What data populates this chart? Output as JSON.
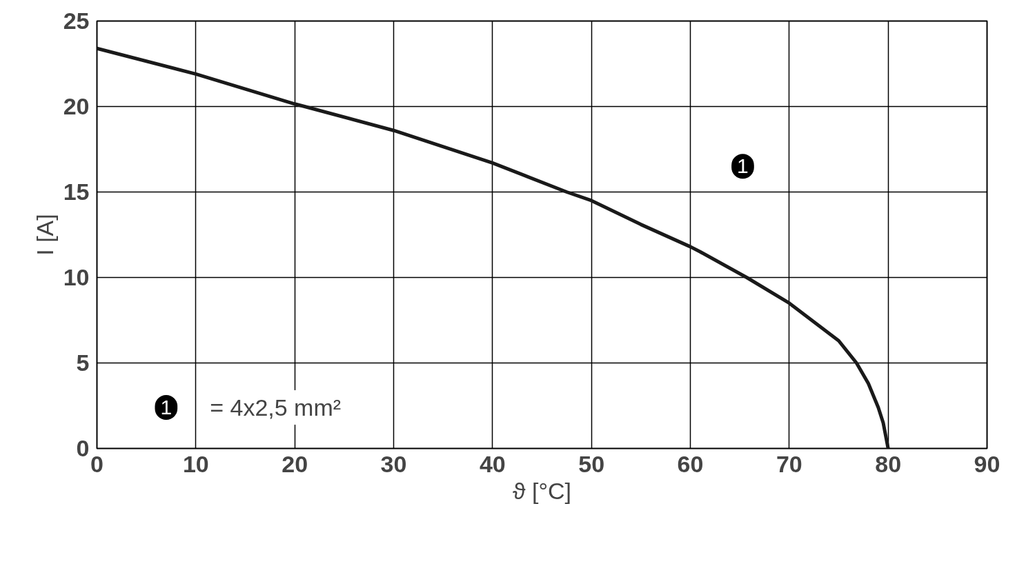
{
  "chart_data": {
    "type": "line",
    "xlabel": "ϑ [°C]",
    "ylabel": "I [A]",
    "x": [
      0,
      10,
      20,
      21,
      30,
      40,
      47.5,
      50,
      55,
      60,
      61,
      65.7,
      70,
      75,
      76.8,
      78,
      79,
      79.5,
      80
    ],
    "series": [
      {
        "name": "= 4x2,5 mm²",
        "color": "#1a1a1a",
        "values": [
          23.4,
          21.9,
          20.15,
          20,
          18.6,
          16.7,
          15,
          14.5,
          13.1,
          11.8,
          11.5,
          10,
          8.5,
          6.3,
          5,
          3.8,
          2.4,
          1.5,
          0
        ]
      }
    ],
    "annotations": [
      {
        "text": "1",
        "x": 65.3,
        "y": 16.5
      }
    ],
    "xlim": [
      0,
      90
    ],
    "xticks": [
      0,
      10,
      20,
      30,
      40,
      50,
      60,
      70,
      80,
      90
    ],
    "ylim": [
      0,
      25
    ],
    "yticks": [
      0,
      5,
      10,
      15,
      20,
      25
    ],
    "grid": true,
    "legend": "bottom left",
    "marker": "none",
    "line_style": "solid"
  }
}
